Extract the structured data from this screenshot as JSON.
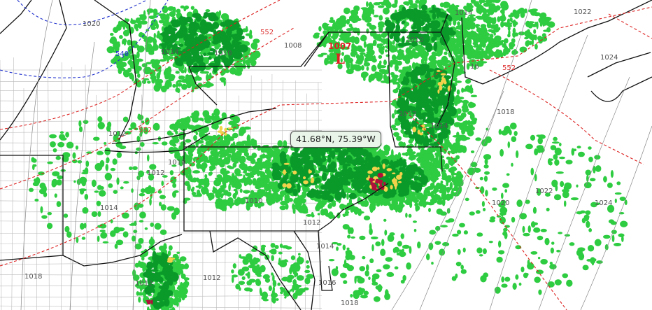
{
  "map": {
    "tooltip": "41.68°N, 75.39°W",
    "low_center": {
      "pressure": "1007",
      "symbol": "L"
    },
    "isobar_labels": [
      "1020",
      "1014",
      "1010",
      "1008",
      "1010",
      "1014",
      "1022",
      "1024",
      "16",
      "1018",
      "1012",
      "1014",
      "1012",
      "1010",
      "1012",
      "1014",
      "1010",
      "1012",
      "1014",
      "1018",
      "1012",
      "1012",
      "1016",
      "1018",
      "1020",
      "1022",
      "1024"
    ],
    "thickness_labels": [
      "540",
      "552",
      "552",
      "552"
    ],
    "colors": {
      "isobar": "#777777",
      "thickness_warm": "#dd2222",
      "thickness_cold": "#2233cc",
      "precip_light": "#2ecc40",
      "precip_moderate": "#0a9a2a",
      "precip_heavy": "#f2d24a",
      "precip_intense": "#b0103a"
    }
  }
}
